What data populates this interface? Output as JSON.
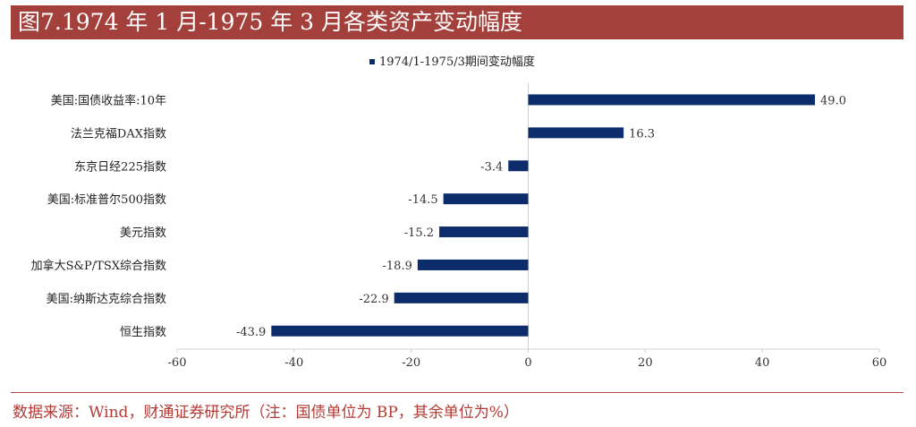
{
  "header": {
    "title": "图7.1974 年 1 月-1975 年 3 月各类资产变动幅度"
  },
  "footer": {
    "source": "数据来源：Wind，财通证券研究所（注：国债单位为 BP，其余单位为%）"
  },
  "colors": {
    "title_bg": "#a4403b",
    "bar": "#0d2c6b",
    "source_text": "#b23a35"
  },
  "chart_data": {
    "type": "bar",
    "orientation": "horizontal",
    "legend": "top-center",
    "series": [
      {
        "name": "1974/1-1975/3期间变动幅度",
        "values": [
          49.0,
          16.3,
          -3.4,
          -14.5,
          -15.2,
          -18.9,
          -22.9,
          -43.9
        ]
      }
    ],
    "categories": [
      "美国:国债收益率:10年",
      "法兰克福DAX指数",
      "东京日经225指数",
      "美国:标准普尔500指数",
      "美元指数",
      "加拿大S&P/TSX综合指数",
      "美国:纳斯达克综合指数",
      "恒生指数"
    ],
    "value_labels": [
      "49.0",
      "16.3",
      "-3.4",
      "-14.5",
      "-15.2",
      "-18.9",
      "-22.9",
      "-43.9"
    ],
    "xlim": [
      -60,
      60
    ],
    "xticks": [
      -60,
      -40,
      -20,
      0,
      20,
      40,
      60
    ],
    "xlabel": "",
    "ylabel": "",
    "grid": false
  }
}
